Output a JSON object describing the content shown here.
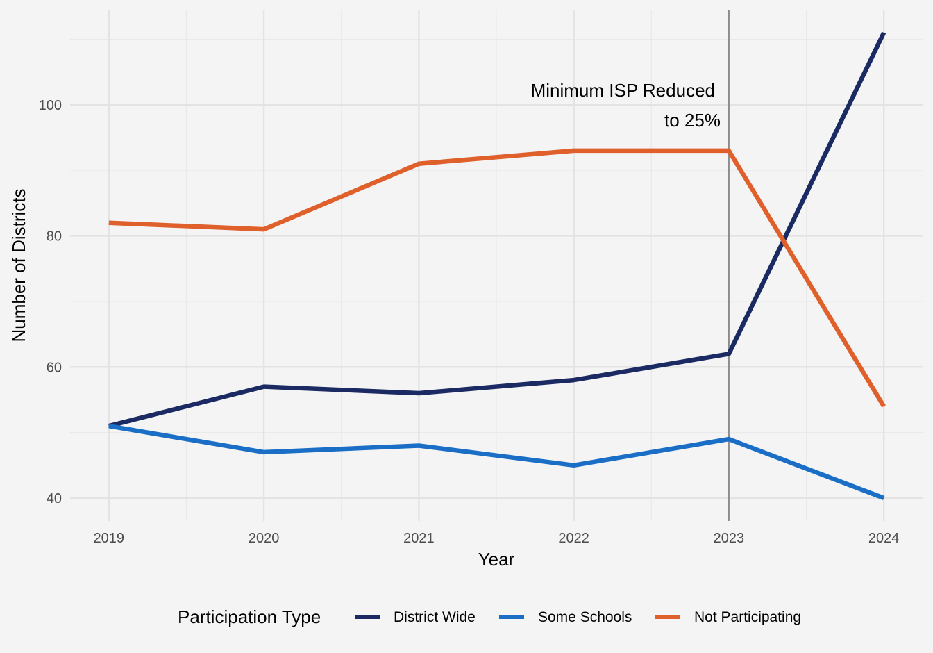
{
  "chart_data": {
    "type": "line",
    "title": "",
    "xlabel": "Year",
    "ylabel": "Number of Districts",
    "x": [
      2019,
      2020,
      2021,
      2022,
      2023,
      2024
    ],
    "x_tick_labels": [
      "2019",
      "2020",
      "2021",
      "2022",
      "2023",
      "2024"
    ],
    "y_ticks": [
      40,
      60,
      80,
      100
    ],
    "y_tick_labels": [
      "40",
      "60",
      "80",
      "100"
    ],
    "xlim": [
      2018.75,
      2024.25
    ],
    "ylim": [
      36.5,
      114.5
    ],
    "grid": true,
    "legend_position": "bottom",
    "legend_title": "Participation Type",
    "series": [
      {
        "name": "District Wide",
        "color": "#1b2a63",
        "values": [
          51,
          57,
          56,
          58,
          62,
          111
        ]
      },
      {
        "name": "Some Schools",
        "color": "#1a6ec6",
        "values": [
          51,
          47,
          48,
          45,
          49,
          40
        ]
      },
      {
        "name": "Not Participating",
        "color": "#e0602c",
        "values": [
          82,
          81,
          91,
          93,
          93,
          54
        ]
      }
    ],
    "vline": {
      "x": 2023,
      "color": "#8c8c8c"
    },
    "annotation": {
      "lines": [
        "Minimum ISP Reduced",
        "to 25%"
      ],
      "x": 2023,
      "y": 102
    }
  }
}
